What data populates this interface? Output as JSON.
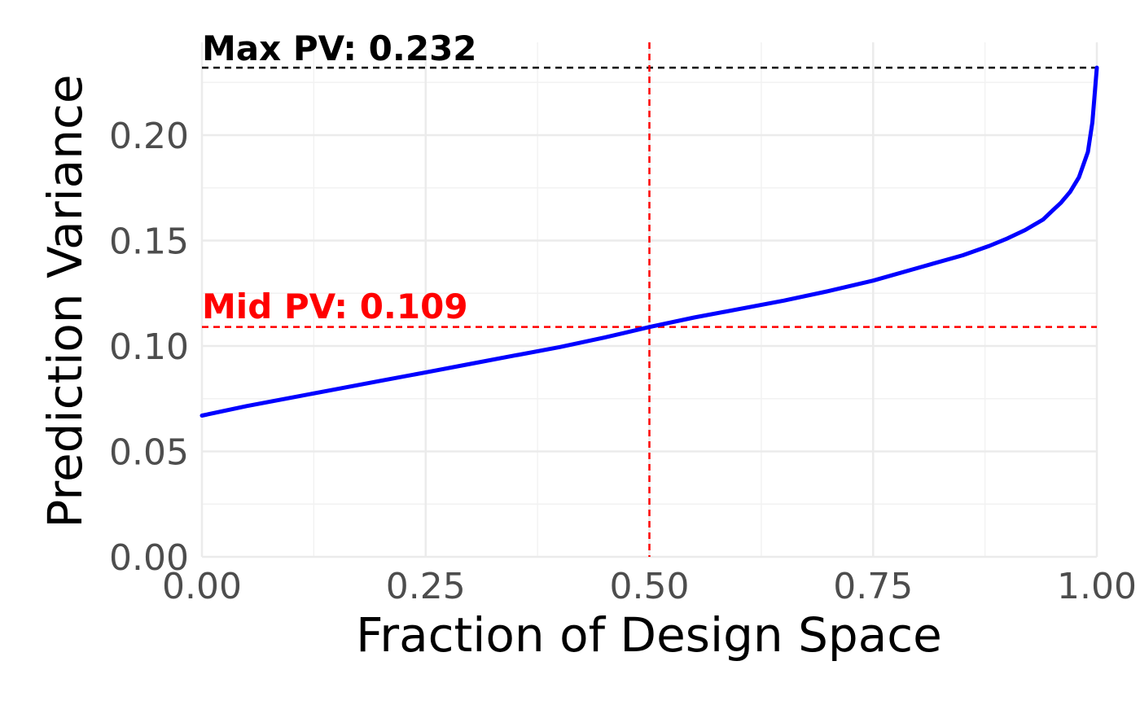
{
  "chart_data": {
    "type": "line",
    "title": "",
    "xlabel": "Fraction of Design Space",
    "ylabel": "Prediction Variance",
    "xlim": [
      0,
      1
    ],
    "ylim": [
      0,
      0.232
    ],
    "grid": true,
    "legend": "none",
    "x_ticks": [
      "0.00",
      "0.25",
      "0.50",
      "0.75",
      "1.00"
    ],
    "y_ticks": [
      "0.00",
      "0.05",
      "0.10",
      "0.15",
      "0.20"
    ],
    "x_tick_values": [
      0,
      0.25,
      0.5,
      0.75,
      1.0
    ],
    "y_tick_values": [
      0,
      0.05,
      0.1,
      0.15,
      0.2
    ],
    "series": [
      {
        "color": "#0000ff",
        "x": [
          0.0,
          0.05,
          0.1,
          0.15,
          0.2,
          0.25,
          0.3,
          0.35,
          0.4,
          0.45,
          0.5,
          0.55,
          0.6,
          0.65,
          0.7,
          0.75,
          0.8,
          0.85,
          0.88,
          0.9,
          0.92,
          0.94,
          0.95,
          0.96,
          0.97,
          0.98,
          0.99,
          0.995,
          1.0
        ],
        "y": [
          0.067,
          0.0715,
          0.0755,
          0.0795,
          0.0835,
          0.0875,
          0.0915,
          0.0955,
          0.0995,
          0.104,
          0.109,
          0.1135,
          0.1175,
          0.1215,
          0.126,
          0.131,
          0.137,
          0.143,
          0.1475,
          0.151,
          0.155,
          0.16,
          0.164,
          0.168,
          0.173,
          0.18,
          0.192,
          0.206,
          0.232
        ]
      }
    ],
    "annotations": {
      "max": {
        "label": "Max PV: 0.232",
        "value": 0.232,
        "color": "#000000"
      },
      "mid": {
        "label": "Mid PV: 0.109",
        "value": 0.109,
        "x": 0.5,
        "color": "#ff0000"
      }
    }
  }
}
